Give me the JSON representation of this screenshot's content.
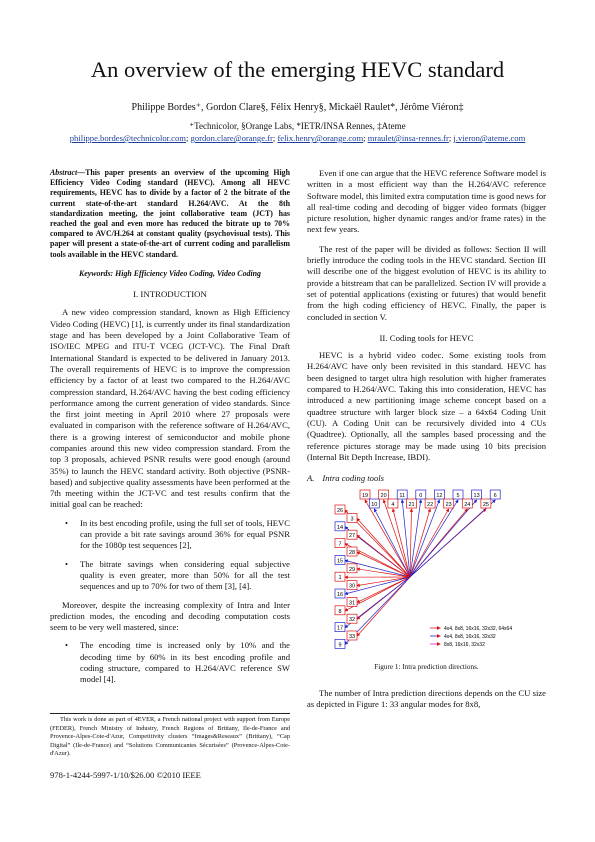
{
  "header": {
    "title": "An overview of the emerging HEVC standard",
    "authors": "Philippe Bordes⁺, Gordon Clare§, Félix Henry§, Mickaël Raulet*, Jérôme Viéron‡",
    "affiliations": "⁺Technicolor, §Orange Labs, *IETR/INSA Rennes, ‡Ateme",
    "emails": [
      "philippe.bordes@technicolor.com",
      "gordon.clare@orange.fr",
      "felix.henry@orange.com",
      "mraulet@insa-rennes.fr",
      "j.vieron@ateme.com"
    ]
  },
  "left": {
    "abstract_label": "Abstract",
    "abstract_text": "—This paper presents an overview of the upcoming High Efficiency Video Coding standard (HEVC). Among all HEVC requirements, HEVC has to divide by a factor of 2 the bitrate of the current state-of-the-art standard H.264/AVC. At the 8th standardization meeting, the joint collaborative team (JCT) has reached the goal and even more has reduced the bitrate up to 70% compared to AVC/H.264 at constant quality (psychovisual tests). This paper will present a state-of-the-art of current coding and parallelism tools available in the HEVC standard.",
    "keywords": "Keywords: High Efficiency Video Coding, Video Coding",
    "section1": "I.    INTRODUCTION",
    "p1": "A new video compression standard, known as High Efficiency Video Coding (HEVC) [1], is currently under its final standardization stage and has been developed by a Joint Collaborative Team of ISO/IEC MPEG and ITU-T VCEG (JCT-VC). The Final Draft International Standard is expected to be delivered in January 2013. The overall requirements of HEVC is to improve the compression efficiency by a factor of at least two compared to the H.264/AVC compression standard, H.264/AVC having the best coding efficiency performance among the current generation of video standards. Since the first joint meeting in April 2010 where 27 proposals were evaluated in comparison with the reference software of H.264/AVC, there is a growing interest of semiconductor and mobile phone companies around this new video compression standard. From the top 3 proposals, achieved PSNR results were good enough (around 35%) to launch the HEVC standard activity. Both objective (PSNR-based) and subjective quality assessments have been performed at the 7th meeting within the JCT-VC and test results confirm that the initial goal can be reached:",
    "bullets1": [
      "In its best encoding profile, using the full set of tools, HEVC can provide a bit rate savings around 36% for equal PSNR for the 1080p test sequences [2],",
      "The bitrate savings when considering equal subjective quality is even greater, more than 50% for all the test sequences and up to 70% for two of them [3], [4]."
    ],
    "p2": "Moreover, despite the increasing complexity of Intra and Inter prediction modes, the encoding and decoding computation costs seem to be very well mastered, since:",
    "bullets2": [
      "The encoding time is increased only by 10% and the decoding time by 60% in its best encoding profile and coding structure, compared to H.264/AVC reference SW model [4]."
    ],
    "footnote": "This work is done as part of 4EVER, a French national project with support from Europe (FEDER), French Ministry of Industry, French Regions of Brittany, Ile-de-France and Provence-Alpes-Cote-d'Azur, Competitivity clusters “Images&Reseaux” (Brittany), “Cap Digital” (Ile-de-France) and “Solutions Communicantes Sécurisées” (Provence-Alpes-Cote-d'Azur).",
    "isbn": "978-1-4244-5997-1/10/$26.00 ©2010 IEEE"
  },
  "right": {
    "p1": "Even if one can argue that the HEVC reference Software model is written in a most efficient way than the H.264/AVC reference Software model, this limited extra computation time is good news for all real-time coding and decoding of bigger video formats (bigger picture resolution, higher dynamic ranges and/or frame rates) in the next few years.",
    "p2": "The rest of the paper will be divided as follows: Section II will briefly introduce the coding tools in the HEVC standard. Section III will describe one of the biggest evolution of HEVC is its ability to provide a bitstream that can be parallelized. Section IV will provide a set of potential applications (existing or futures) that would benefit from the high coding efficiency of HEVC. Finally, the paper is concluded in section V.",
    "section2": "II.    Coding tools for HEVC",
    "p3": "HEVC is a hybrid video codec. Some existing tools from H.264/AVC have only been revisited in this standard. HEVC has been designed to target ultra high resolution with higher framerates compared to H.264/AVC. Taking this into consideration, HEVC has introduced a new partitioning image scheme concept based on a quadtree structure with larger block size – a 64x64 Coding Unit (CU). A Coding Unit can be recursively divided into 4 CUs (Quadtree). Optionally, all the samples based processing and the reference pictures storage may be made using 10 bits precision (Internal Bit Depth Increase, IBDI).",
    "subsec_num": "A.",
    "subsec_title": "Intra coding tools",
    "caption": "Figure 1: Intra prediction directions.",
    "p4": "The number of Intra prediction directions depends on the CU size as depicted in Figure 1: 33 angular modes for 8x8,"
  },
  "figure": {
    "top_labels": [
      "19",
      "10",
      "20",
      "4",
      "11",
      "21",
      "0",
      "22",
      "12",
      "23",
      "5",
      "24",
      "13",
      "25",
      "6"
    ],
    "top_label_colors": [
      "#d11",
      "#22c",
      "#d11",
      "#d11",
      "#22c",
      "#d11",
      "#22c",
      "#d11",
      "#22c",
      "#d11",
      "#22c",
      "#d11",
      "#22c",
      "#d11",
      "#22c"
    ],
    "left_labels": [
      "26",
      "3",
      "14",
      "27",
      "7",
      "28",
      "15",
      "29",
      "1",
      "30",
      "16",
      "31",
      "8",
      "32",
      "17",
      "33",
      "9"
    ],
    "left_label_colors": [
      "#d11",
      "#d11",
      "#22c",
      "#d11",
      "#d11",
      "#d11",
      "#22c",
      "#d11",
      "#d11",
      "#d11",
      "#22c",
      "#d11",
      "#d11",
      "#d11",
      "#22c",
      "#d11",
      "#22c"
    ],
    "legend": [
      {
        "text": "4x4, 8x8, 16x16, 32x32, 64x64",
        "color": "#d11"
      },
      {
        "text": "4x4, 8x8, 16x16, 32x32",
        "color": "#22c"
      },
      {
        "text": "8x8, 16x16, 32x32",
        "color": "#d2c"
      }
    ]
  }
}
